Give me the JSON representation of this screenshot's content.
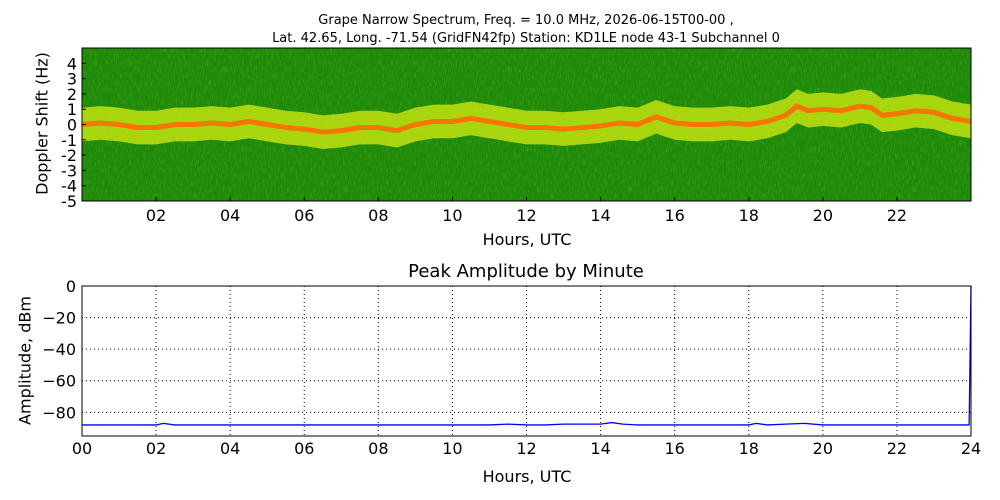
{
  "chart_data": [
    {
      "type": "heatmap",
      "title_lines": [
        "Grape Narrow Spectrum, Freq. = 10.0 MHz, 2026-06-15T00-00 ,",
        "Lat.  42.65, Long. -71.54 (GridFN42fp) Station: KD1LE node 43-1 Subchannel 0"
      ],
      "xlabel": "Hours, UTC",
      "ylabel": "Doppler Shift (Hz)",
      "xlim": [
        0,
        24
      ],
      "ylim": [
        -5,
        5
      ],
      "x_ticks": [
        "02",
        "04",
        "06",
        "08",
        "10",
        "12",
        "14",
        "16",
        "18",
        "20",
        "22"
      ],
      "y_ticks": [
        "4",
        "3",
        "2",
        "1",
        "0",
        "-1",
        "-2",
        "-3",
        "-4",
        "-5"
      ],
      "colors": {
        "background": "#1f8a0a",
        "band_edge": "#d7ee10",
        "band_core": "#ff6a00"
      },
      "doppler_trace": {
        "x": [
          0,
          0.5,
          1,
          1.5,
          2,
          2.5,
          3,
          3.5,
          4,
          4.5,
          5,
          5.5,
          6,
          6.5,
          7,
          7.5,
          8,
          8.5,
          9,
          9.5,
          10,
          10.5,
          11,
          11.5,
          12,
          12.5,
          13,
          13.5,
          14,
          14.5,
          15,
          15.5,
          16,
          16.5,
          17,
          17.5,
          18,
          18.5,
          19,
          19.3,
          19.6,
          20,
          20.5,
          21,
          21.3,
          21.6,
          22,
          22.5,
          23,
          23.5,
          24
        ],
        "y": [
          0,
          0.1,
          0.0,
          -0.2,
          -0.2,
          0.0,
          0.0,
          0.1,
          0.0,
          0.2,
          0.0,
          -0.2,
          -0.3,
          -0.5,
          -0.4,
          -0.2,
          -0.2,
          -0.4,
          0.0,
          0.2,
          0.2,
          0.4,
          0.2,
          0.0,
          -0.2,
          -0.2,
          -0.3,
          -0.2,
          -0.1,
          0.1,
          0.0,
          0.5,
          0.1,
          0.0,
          0.0,
          0.1,
          0.0,
          0.2,
          0.6,
          1.2,
          0.9,
          1.0,
          0.9,
          1.2,
          1.1,
          0.6,
          0.7,
          0.9,
          0.8,
          0.4,
          0.2
        ]
      }
    },
    {
      "type": "line",
      "title": "Peak Amplitude by Minute",
      "xlabel": "Hours, UTC",
      "ylabel": "Amplitude, dBm",
      "xlim": [
        0,
        24
      ],
      "ylim": [
        -95,
        0
      ],
      "x_ticks": [
        "00",
        "02",
        "04",
        "06",
        "08",
        "10",
        "12",
        "14",
        "16",
        "18",
        "20",
        "22",
        "24"
      ],
      "y_ticks": [
        "0",
        "−20",
        "−40",
        "−60",
        "−80"
      ],
      "grid": true,
      "line_color": "#0000ff",
      "series": [
        {
          "x": [
            0,
            0.5,
            1,
            1.5,
            2,
            2.2,
            2.5,
            3,
            3.5,
            4,
            4.5,
            5,
            5.5,
            6,
            6.5,
            7,
            7.5,
            8,
            8.5,
            9,
            9.5,
            10,
            10.5,
            11,
            11.5,
            12,
            12.5,
            13,
            13.5,
            14,
            14.3,
            14.6,
            15,
            15.5,
            16,
            16.5,
            17,
            17.5,
            18,
            18.2,
            18.5,
            19,
            19.5,
            20,
            20.5,
            21,
            21.5,
            22,
            22.5,
            23,
            23.5,
            23.95,
            24
          ],
          "y": [
            -88,
            -88,
            -88,
            -88,
            -88,
            -87,
            -88,
            -88,
            -88,
            -88,
            -88,
            -88,
            -88,
            -88,
            -88,
            -88,
            -88,
            -88,
            -88,
            -88,
            -88,
            -88,
            -88,
            -88,
            -87.5,
            -88,
            -88,
            -87.5,
            -87.5,
            -87.5,
            -86.5,
            -87.5,
            -88,
            -88,
            -88,
            -88,
            -88,
            -88,
            -88,
            -87,
            -88,
            -87.5,
            -87,
            -88,
            -88,
            -88,
            -88,
            -88,
            -88,
            -88,
            -88,
            -88,
            0
          ]
        }
      ]
    }
  ]
}
